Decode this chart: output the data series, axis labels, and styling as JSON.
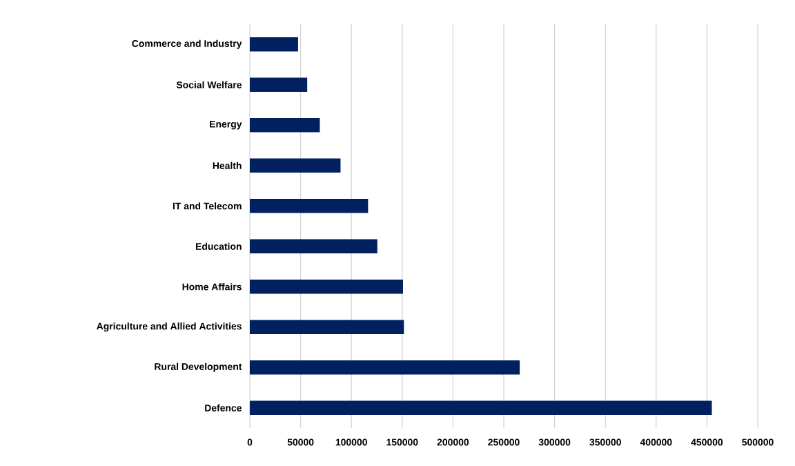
{
  "chart_data": {
    "type": "bar",
    "orientation": "horizontal",
    "categories": [
      "Commerce and Industry",
      "Social Welfare",
      "Energy",
      "Health",
      "IT and Telecom",
      "Education",
      "Home Affairs",
      "Agriculture and Allied Activities",
      "Rural Development",
      "Defence"
    ],
    "values": [
      47500,
      56500,
      68900,
      89300,
      116400,
      125500,
      150800,
      151700,
      265700,
      454800
    ],
    "color": "#002060",
    "xlim": [
      0,
      500000
    ],
    "xticks": [
      0,
      50000,
      100000,
      150000,
      200000,
      250000,
      300000,
      350000,
      400000,
      450000,
      500000
    ],
    "grid": "x"
  }
}
